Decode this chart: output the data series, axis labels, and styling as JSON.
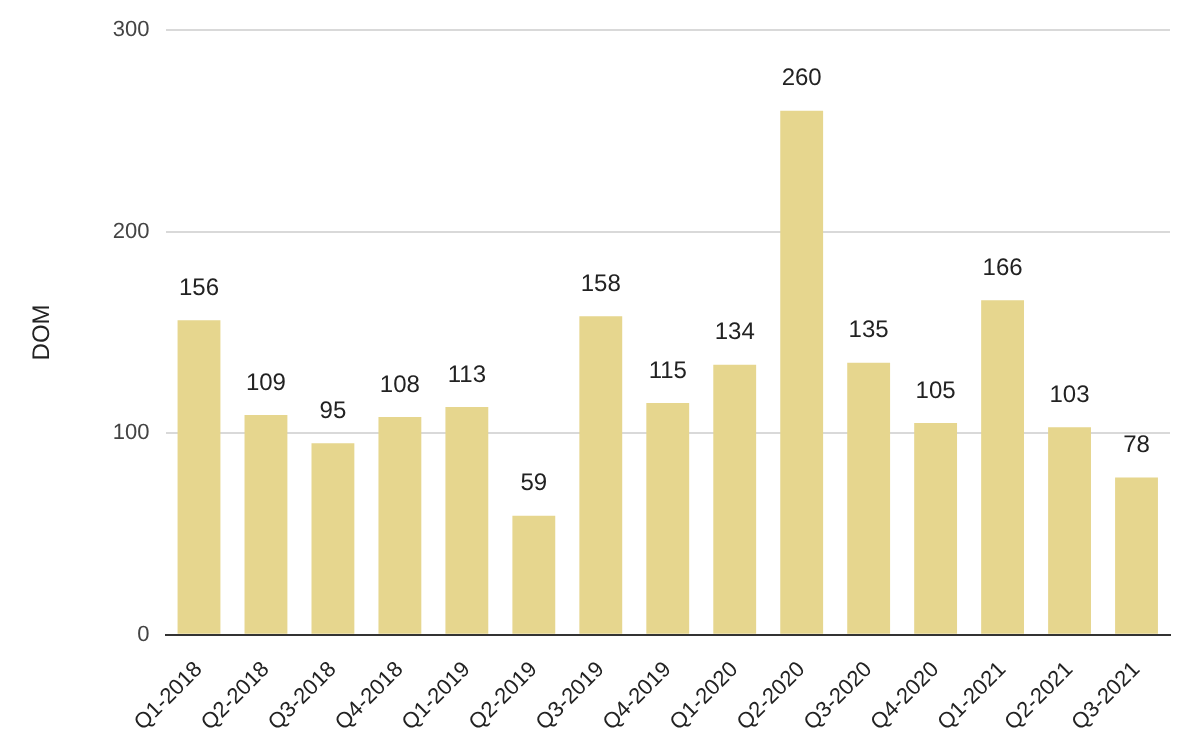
{
  "chart_data": {
    "type": "bar",
    "ylabel": "DOM",
    "categories": [
      "Q1-2018",
      "Q2-2018",
      "Q3-2018",
      "Q4-2018",
      "Q1-2019",
      "Q2-2019",
      "Q3-2019",
      "Q4-2019",
      "Q1-2020",
      "Q2-2020",
      "Q3-2020",
      "Q4-2020",
      "Q1-2021",
      "Q2-2021",
      "Q3-2021"
    ],
    "values": [
      156,
      109,
      95,
      108,
      113,
      59,
      158,
      115,
      134,
      260,
      135,
      105,
      166,
      103,
      78
    ],
    "color": "#e6d68e",
    "ylim": [
      0,
      300
    ],
    "yticks": [
      0,
      100,
      200,
      300
    ],
    "grid": "y",
    "data_labels": true
  }
}
